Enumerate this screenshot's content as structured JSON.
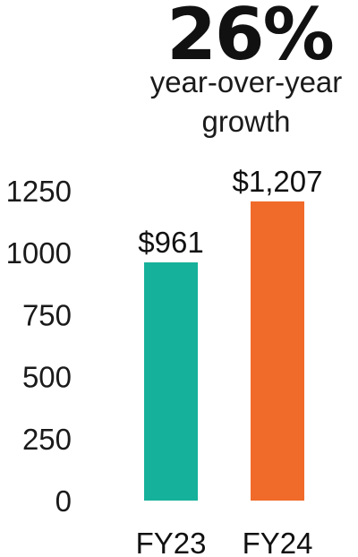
{
  "headline": {
    "value": "26%",
    "subtitle_line1": "year-over-year",
    "subtitle_line2": "growth"
  },
  "colors": {
    "fy23_bar": "#16b19a",
    "fy24_bar": "#f06a29"
  },
  "chart_data": {
    "type": "bar",
    "categories": [
      "FY23",
      "FY24"
    ],
    "values": [
      961,
      1207
    ],
    "value_labels": [
      "$961",
      "$1,207"
    ],
    "y_ticks": [
      "0",
      "250",
      "500",
      "750",
      "1000",
      "1250"
    ],
    "ylim": [
      0,
      1250
    ],
    "grid": false,
    "legend": "none"
  }
}
